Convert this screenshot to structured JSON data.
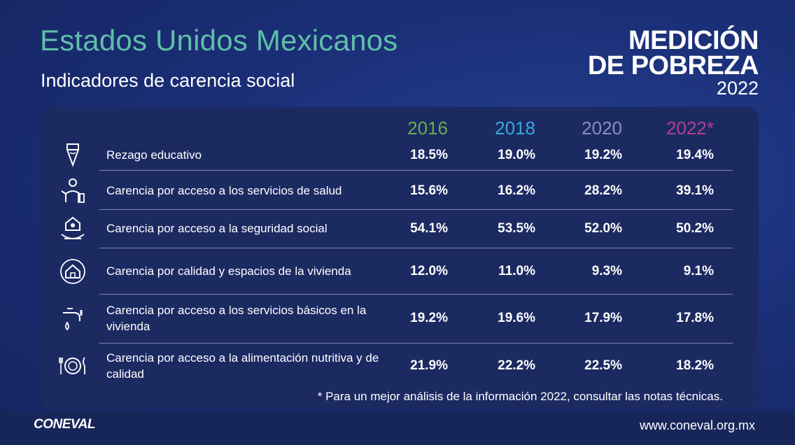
{
  "header": {
    "title": "Estados Unidos Mexicanos",
    "subtitle": "Indicadores de carencia social"
  },
  "logo": {
    "line1": "MEDICIÓN",
    "line2": "DE POBREZA",
    "line3": "2022"
  },
  "colors": {
    "2016": "#6aab4e",
    "2018": "#3aa7e0",
    "2020": "#8e8cc4",
    "2022": "#b0418f",
    "title": "#5fbfa8"
  },
  "chart_data": {
    "type": "table",
    "title": "Indicadores de carencia social",
    "columns": [
      "2016",
      "2018",
      "2020",
      "2022*"
    ],
    "rows": [
      {
        "label": "Rezago educativo",
        "icon": "pencil-icon",
        "values": [
          "18.5%",
          "19.0%",
          "19.2%",
          "19.4%"
        ]
      },
      {
        "label": "Carencia por acceso a los servicios de salud",
        "icon": "doctor-icon",
        "values": [
          "15.6%",
          "16.2%",
          "28.2%",
          "39.1%"
        ]
      },
      {
        "label": "Carencia por acceso a la seguridad social",
        "icon": "hands-protection-icon",
        "values": [
          "54.1%",
          "53.5%",
          "52.0%",
          "50.2%"
        ]
      },
      {
        "label": "Carencia por calidad y espacios de la vivienda",
        "icon": "house-hands-icon",
        "values": [
          "12.0%",
          "11.0%",
          "9.3%",
          "9.1%"
        ]
      },
      {
        "label": "Carencia por acceso a los servicios básicos en la vivienda",
        "icon": "faucet-icon",
        "values": [
          "19.2%",
          "19.6%",
          "17.9%",
          "17.8%"
        ]
      },
      {
        "label": "Carencia por acceso a la alimentación nutritiva y de calidad",
        "icon": "plate-cutlery-icon",
        "values": [
          "21.9%",
          "22.2%",
          "22.5%",
          "18.2%"
        ]
      }
    ]
  },
  "footnote": "* Para un mejor análisis de la información 2022, consultar las notas técnicas.",
  "footer": {
    "brand": "CONEVAL",
    "url": "www.coneval.org.mx"
  }
}
